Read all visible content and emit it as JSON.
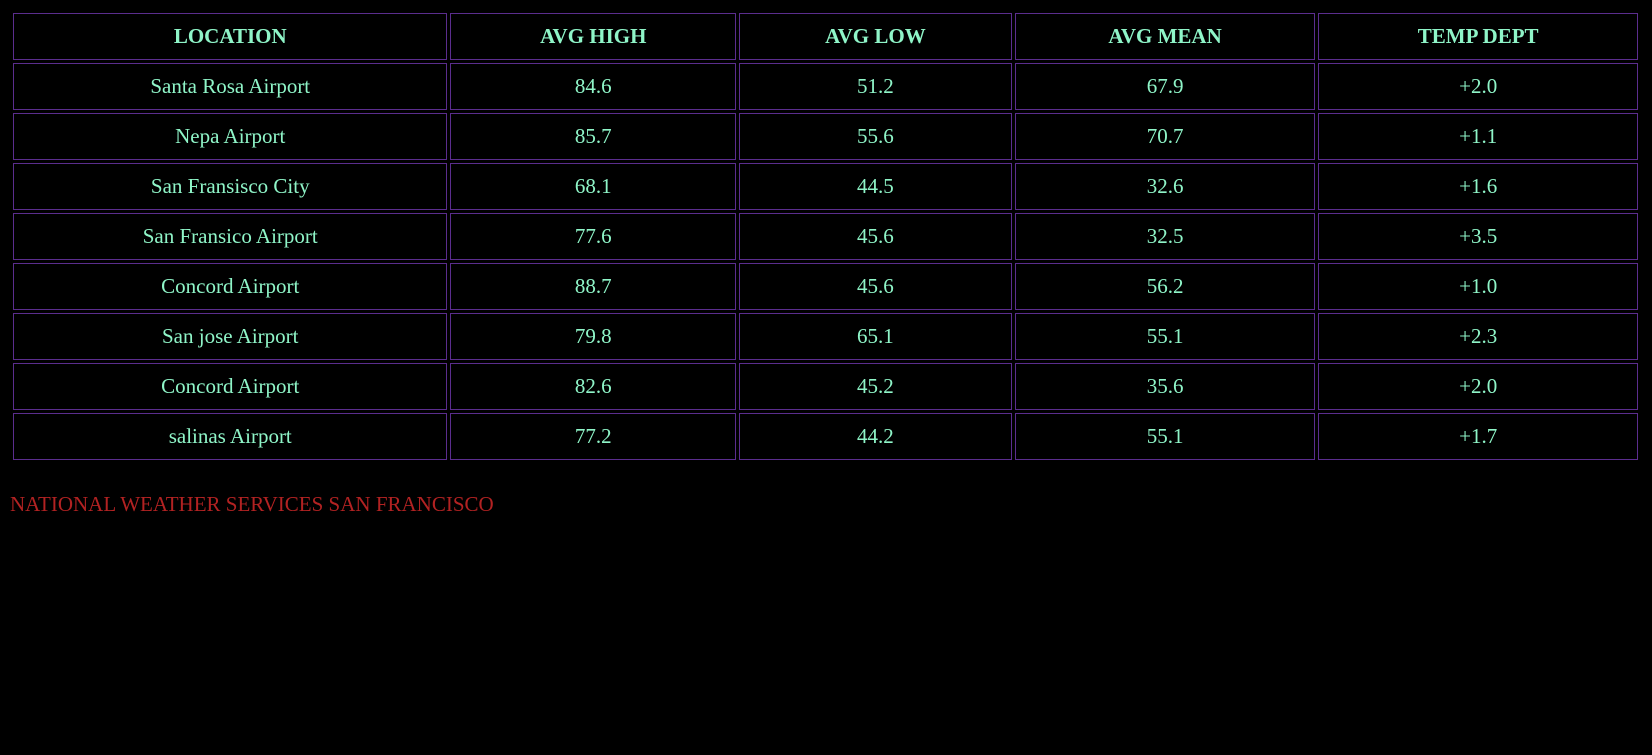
{
  "colors": {
    "background": "#000000",
    "cell_border": "#5b2d8e",
    "cell_text": "#8ff5c8",
    "footer_text": "#b22222"
  },
  "table": {
    "headers": [
      "LOCATION",
      "AVG HIGH",
      "AVG LOW",
      "AVG MEAN",
      "TEMP DEPT"
    ],
    "rows": [
      [
        "Santa Rosa Airport",
        "84.6",
        "51.2",
        "67.9",
        "+2.0"
      ],
      [
        "Nepa Airport",
        "85.7",
        "55.6",
        "70.7",
        "+1.1"
      ],
      [
        "San Fransisco City",
        "68.1",
        "44.5",
        "32.6",
        "+1.6"
      ],
      [
        "San Fransico Airport",
        "77.6",
        "45.6",
        "32.5",
        "+3.5"
      ],
      [
        "Concord Airport",
        "88.7",
        "45.6",
        "56.2",
        "+1.0"
      ],
      [
        "San jose Airport",
        "79.8",
        "65.1",
        "55.1",
        "+2.3"
      ],
      [
        "Concord Airport",
        "82.6",
        "45.2",
        "35.6",
        "+2.0"
      ],
      [
        "salinas Airport",
        "77.2",
        "44.2",
        "55.1",
        "+1.7"
      ]
    ]
  },
  "footer": {
    "text": "NATIONAL WEATHER SERVICES SAN FRANCISCO"
  }
}
